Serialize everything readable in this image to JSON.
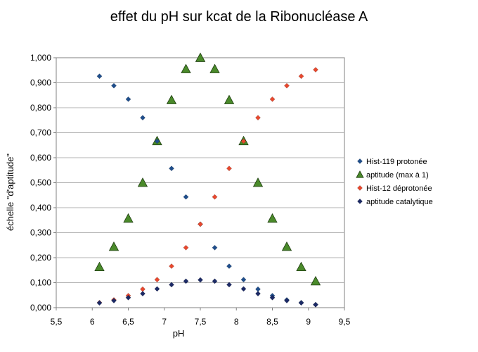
{
  "chart_data": {
    "type": "scatter",
    "title": "effet du pH sur kcat de la Ribonucléase A",
    "xlabel": "pH",
    "ylabel": "échelle \"d'aptitude\"",
    "xlim": [
      5.5,
      9.5
    ],
    "ylim": [
      0,
      1
    ],
    "x_ticks": [
      "5,5",
      "6",
      "6,5",
      "7",
      "7,5",
      "8",
      "8,5",
      "9",
      "9,5"
    ],
    "y_ticks": [
      "0,000",
      "0,100",
      "0,200",
      "0,300",
      "0,400",
      "0,500",
      "0,600",
      "0,700",
      "0,800",
      "0,900",
      "1,000"
    ],
    "grid": "horizontal",
    "legend_position": "right",
    "series": [
      {
        "name": "Hist-119 protonée",
        "marker": "diamond",
        "color": "#1f4e8c",
        "points": [
          [
            6.1,
            0.926
          ],
          [
            6.3,
            0.888
          ],
          [
            6.5,
            0.834
          ],
          [
            6.7,
            0.76
          ],
          [
            6.9,
            0.666
          ],
          [
            7.1,
            0.557
          ],
          [
            7.3,
            0.443
          ],
          [
            7.5,
            0.334
          ],
          [
            7.7,
            0.24
          ],
          [
            7.9,
            0.166
          ],
          [
            8.1,
            0.112
          ],
          [
            8.3,
            0.074
          ],
          [
            8.5,
            0.048
          ],
          [
            8.7,
            0.031
          ],
          [
            8.9,
            0.02
          ],
          [
            9.1,
            0.012
          ]
        ]
      },
      {
        "name": "aptitude (max à 1)",
        "marker": "triangle",
        "color": "#4a8a2a",
        "points": [
          [
            6.1,
            0.163
          ],
          [
            6.3,
            0.244
          ],
          [
            6.5,
            0.357
          ],
          [
            6.7,
            0.5
          ],
          [
            6.9,
            0.667
          ],
          [
            7.1,
            0.831
          ],
          [
            7.3,
            0.955
          ],
          [
            7.5,
            1.0
          ],
          [
            7.7,
            0.955
          ],
          [
            7.9,
            0.831
          ],
          [
            8.1,
            0.667
          ],
          [
            8.3,
            0.5
          ],
          [
            8.5,
            0.357
          ],
          [
            8.7,
            0.244
          ],
          [
            8.9,
            0.163
          ],
          [
            9.1,
            0.106
          ]
        ]
      },
      {
        "name": "Hist-12 déprotonée",
        "marker": "diamond",
        "color": "#e8482e",
        "points": [
          [
            6.1,
            0.02
          ],
          [
            6.3,
            0.031
          ],
          [
            6.5,
            0.048
          ],
          [
            6.7,
            0.074
          ],
          [
            6.9,
            0.112
          ],
          [
            7.1,
            0.166
          ],
          [
            7.3,
            0.24
          ],
          [
            7.5,
            0.334
          ],
          [
            7.7,
            0.443
          ],
          [
            7.9,
            0.557
          ],
          [
            8.1,
            0.666
          ],
          [
            8.3,
            0.76
          ],
          [
            8.5,
            0.834
          ],
          [
            8.7,
            0.888
          ],
          [
            8.9,
            0.926
          ],
          [
            9.1,
            0.952
          ]
        ]
      },
      {
        "name": "aptitude catalytique",
        "marker": "diamond",
        "color": "#1c2a66",
        "points": [
          [
            6.1,
            0.019
          ],
          [
            6.3,
            0.028
          ],
          [
            6.5,
            0.04
          ],
          [
            6.7,
            0.056
          ],
          [
            6.9,
            0.075
          ],
          [
            7.1,
            0.092
          ],
          [
            7.3,
            0.106
          ],
          [
            7.5,
            0.111
          ],
          [
            7.7,
            0.106
          ],
          [
            7.9,
            0.092
          ],
          [
            8.1,
            0.075
          ],
          [
            8.3,
            0.056
          ],
          [
            8.5,
            0.04
          ],
          [
            8.7,
            0.028
          ],
          [
            8.9,
            0.019
          ],
          [
            9.1,
            0.012
          ]
        ]
      }
    ]
  }
}
